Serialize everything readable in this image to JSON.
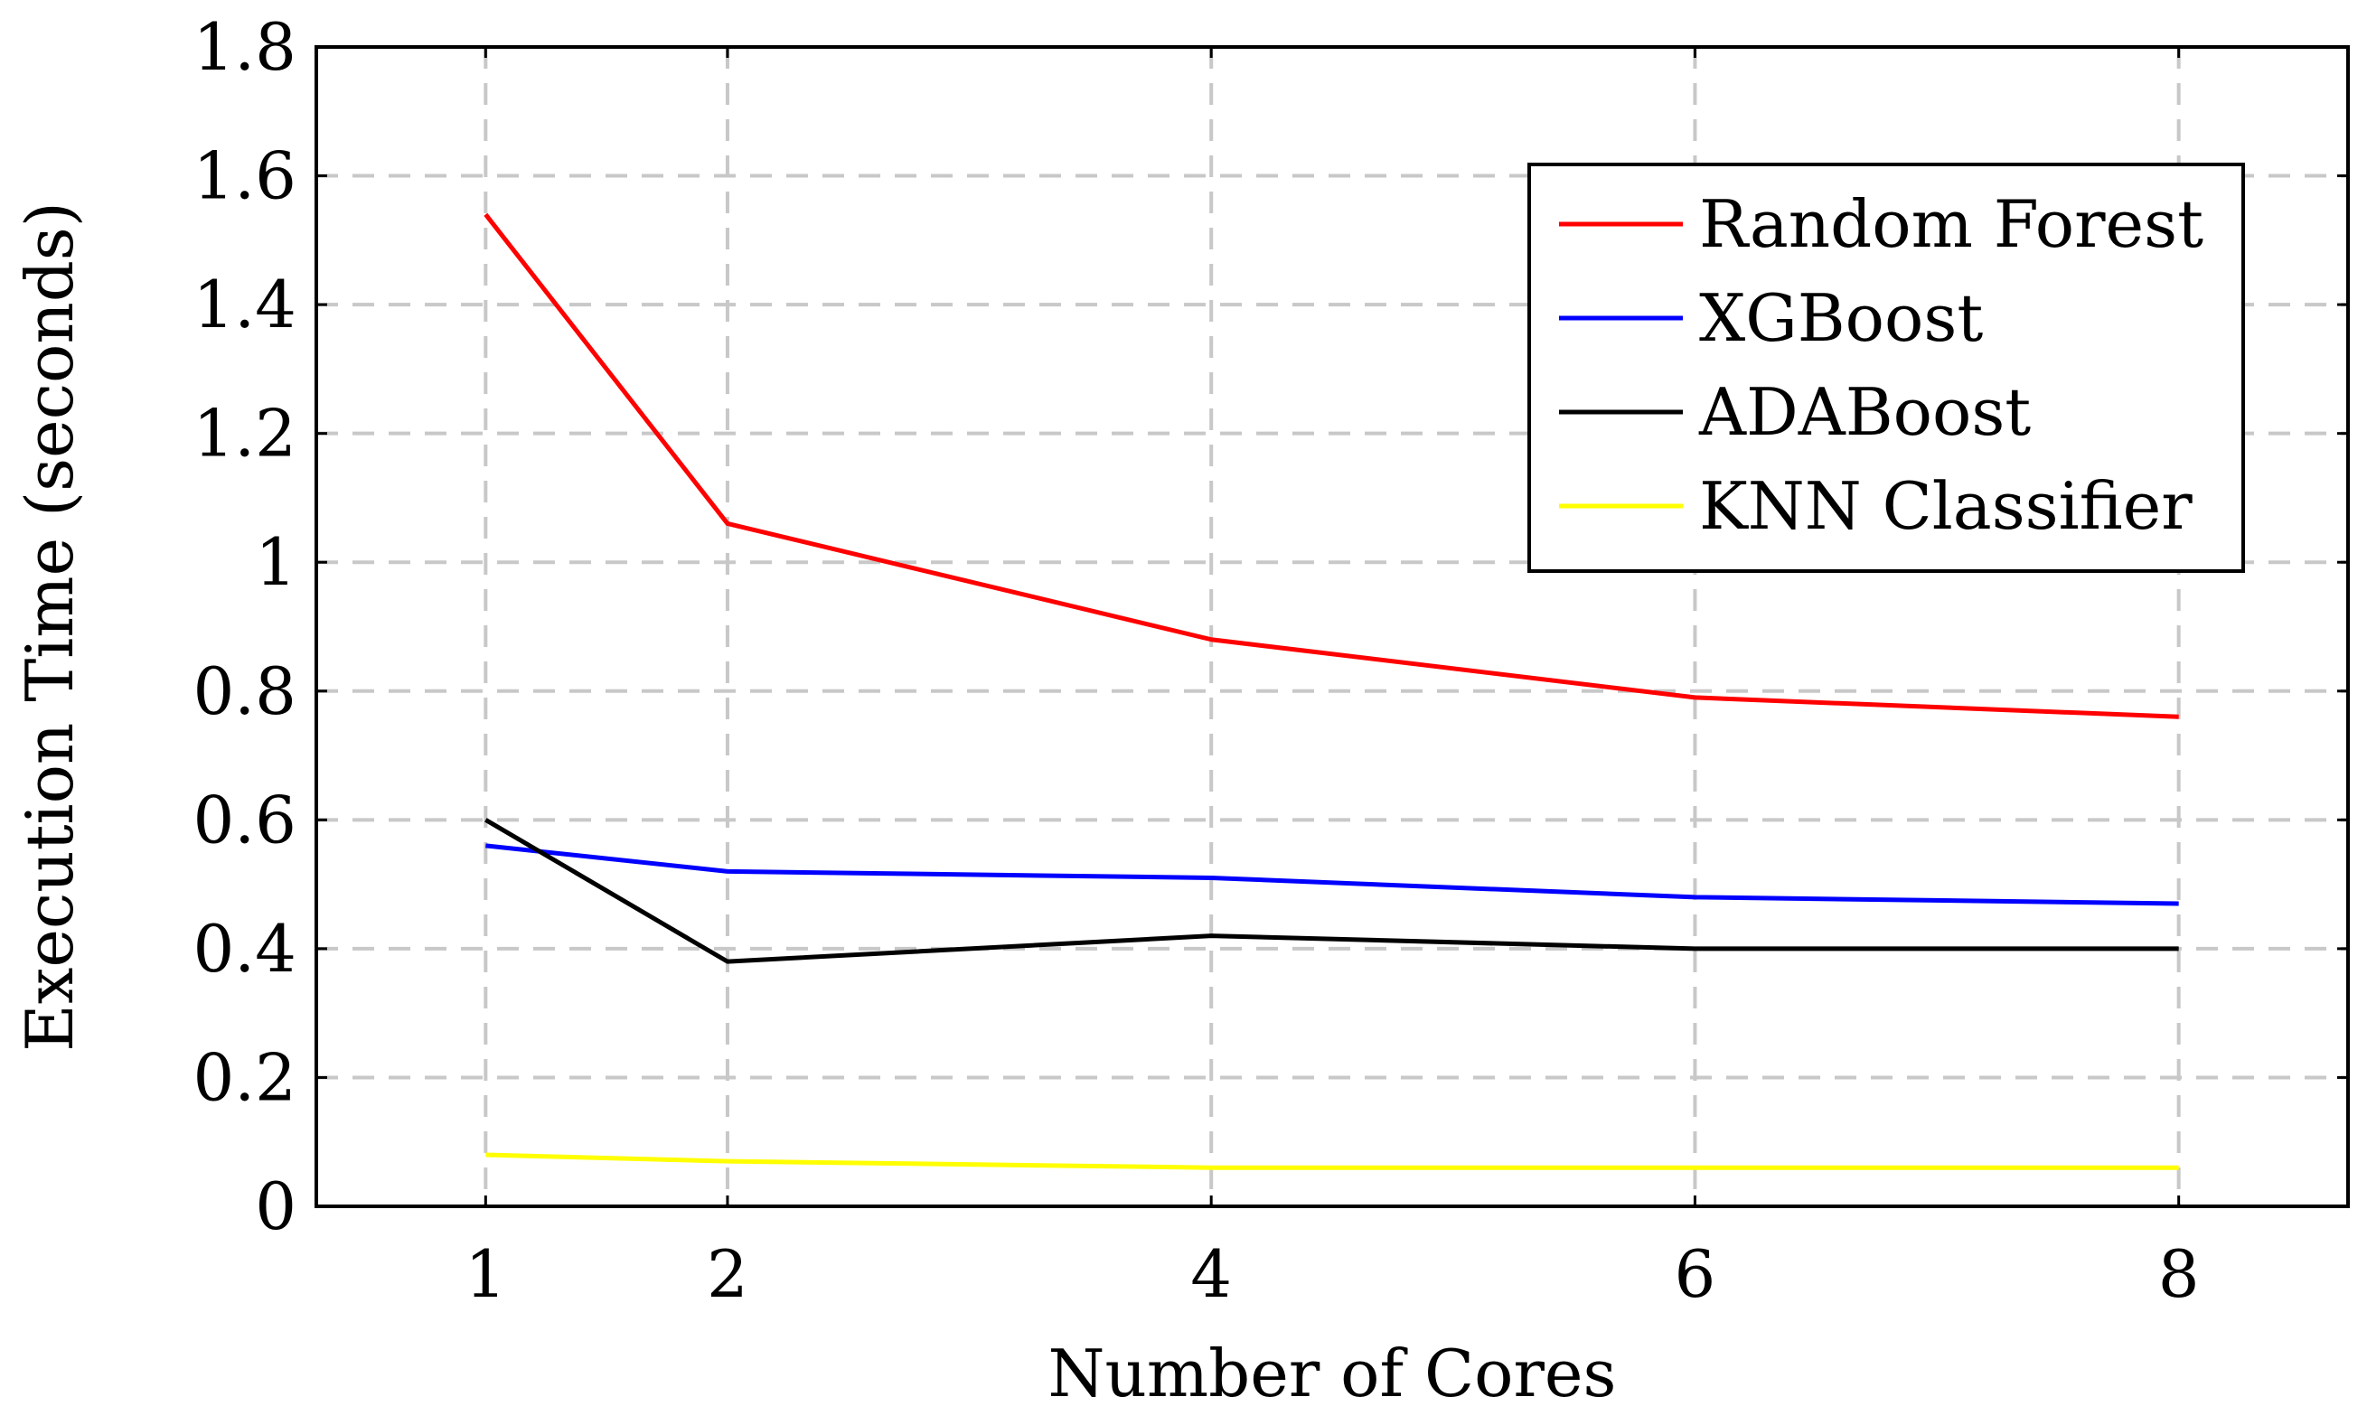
{
  "chart_data": {
    "type": "line",
    "title": "",
    "xlabel": "Number of Cores",
    "ylabel": "Execution Time (seconds)",
    "x": [
      1,
      2,
      4,
      6,
      8
    ],
    "x_ticks": [
      "1",
      "2",
      "4",
      "6",
      "8"
    ],
    "y_ticks": [
      "0",
      "0.2",
      "0.4",
      "0.6",
      "0.8",
      "1",
      "1.2",
      "1.4",
      "1.6",
      "1.8"
    ],
    "xlim": [
      0.3,
      8.7
    ],
    "ylim": [
      0,
      1.8
    ],
    "grid": true,
    "legend_position": "top-right",
    "series": [
      {
        "name": "Random Forest",
        "color": "#ff0000",
        "values": [
          1.54,
          1.06,
          0.88,
          0.79,
          0.76
        ]
      },
      {
        "name": "XGBoost",
        "color": "#0000ff",
        "values": [
          0.56,
          0.52,
          0.51,
          0.48,
          0.47
        ]
      },
      {
        "name": "ADABoost",
        "color": "#000000",
        "values": [
          0.6,
          0.38,
          0.42,
          0.4,
          0.4
        ]
      },
      {
        "name": "KNN Classifier",
        "color": "#ffff00",
        "values": [
          0.08,
          0.07,
          0.06,
          0.06,
          0.06
        ]
      }
    ]
  }
}
